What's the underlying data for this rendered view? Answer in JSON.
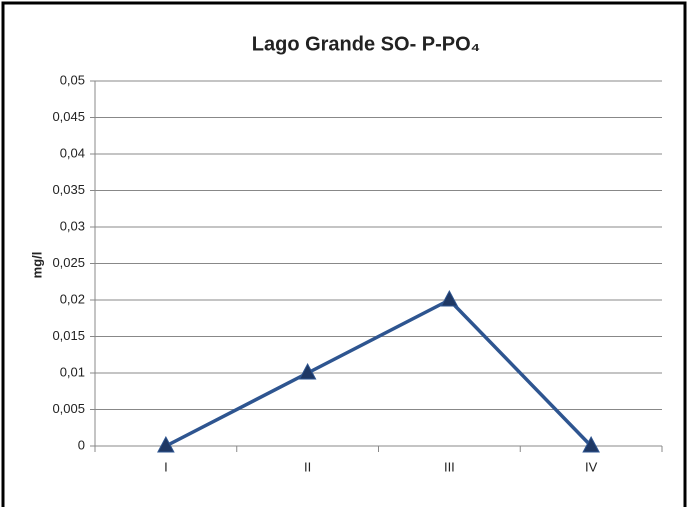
{
  "chart_data": {
    "type": "line",
    "title": "Lago Grande SO- P-PO₄",
    "y_label": "mg/l",
    "categories": [
      "I",
      "II",
      "III",
      "IV"
    ],
    "values": [
      0,
      0.01,
      0.02,
      0
    ],
    "color": "#2e5590",
    "marker_color": "#1f3864",
    "ylim": [
      0,
      0.05
    ],
    "yticks": [
      0,
      {
        "value": 0.005,
        "label": "0,005"
      },
      {
        "value": 0.01,
        "label": "0,01"
      },
      {
        "value": 0.015,
        "label": "0,015"
      },
      {
        "value": 0.02,
        "label": "0,02"
      },
      {
        "value": 0.025,
        "label": "0,025"
      },
      {
        "value": 0.03,
        "label": "0,03"
      },
      {
        "value": 0.035,
        "label": "0,035"
      },
      {
        "value": 0.04,
        "label": "0,04"
      },
      {
        "value": 0.045,
        "label": "0,045"
      },
      {
        "value": 0.05,
        "label": "0,05"
      }
    ],
    "grid": true
  }
}
